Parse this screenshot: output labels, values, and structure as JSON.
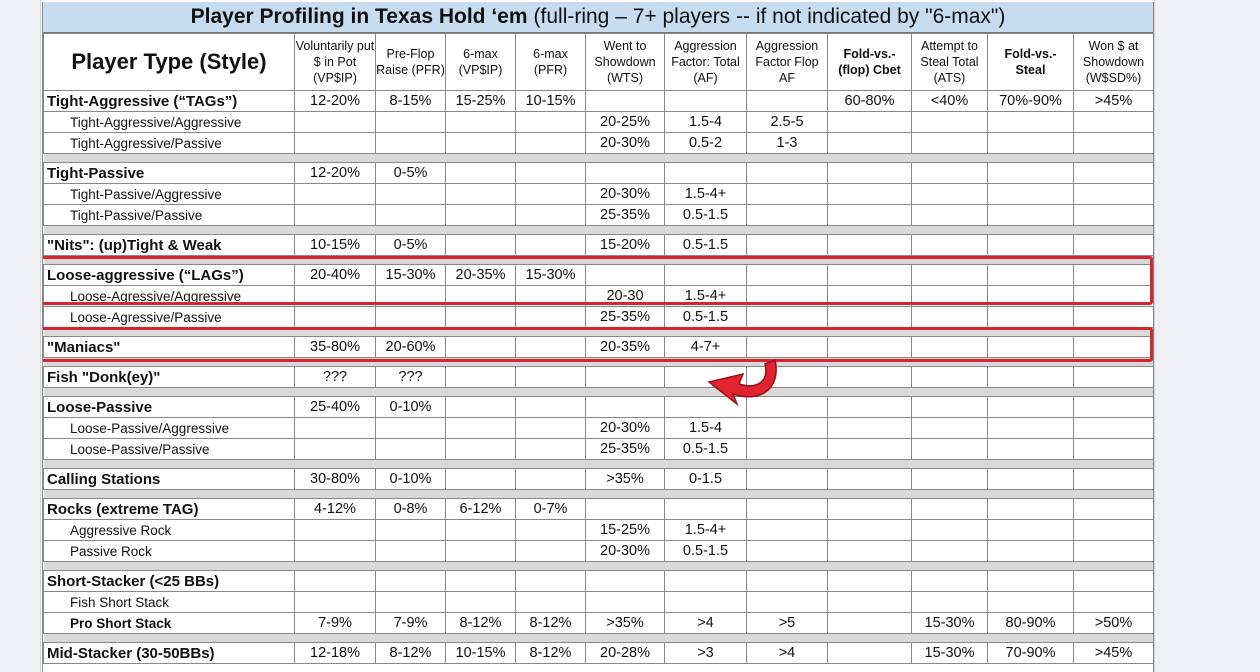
{
  "title": {
    "bold": "Player Profiling in Texas Hold ‘em",
    "rest": "(full-ring – 7+ players -- if not indicated by \"6-max\")"
  },
  "headers": [
    {
      "text": "Player Type (Style)",
      "bold": true,
      "big": true
    },
    {
      "text": "Voluntarily put $ in Pot (VP$IP)",
      "bold": false
    },
    {
      "text": "Pre-Flop Raise (PFR)",
      "bold": false
    },
    {
      "text": "6-max (VP$IP)",
      "bold": false
    },
    {
      "text": "6-max (PFR)",
      "bold": false
    },
    {
      "text": "Went to Showdown (WTS)",
      "bold": false
    },
    {
      "text": "Aggression Factor: Total (AF)",
      "bold": false
    },
    {
      "text": "Aggression Factor Flop AF",
      "bold": false
    },
    {
      "text": "Fold-vs.- (flop) Cbet",
      "bold": true
    },
    {
      "text": "Attempt to Steal Total (ATS)",
      "bold": false
    },
    {
      "text": "Fold-vs.- Steal",
      "bold": true
    },
    {
      "text": "Won $ at Showdown (W$SD%)",
      "bold": false
    }
  ],
  "rows": [
    {
      "type": "group",
      "cells": [
        "Tight-Aggressive (“TAGs”)",
        "12-20%",
        "8-15%",
        "15-25%",
        "10-15%",
        "",
        "",
        "",
        "60-80%",
        "<40%",
        "70%-90%",
        ">45%"
      ]
    },
    {
      "type": "sub",
      "cells": [
        "Tight-Aggressive/Aggressive",
        "",
        "",
        "",
        "",
        "20-25%",
        "1.5-4",
        "2.5-5",
        "",
        "",
        "",
        ""
      ]
    },
    {
      "type": "sub",
      "cells": [
        "Tight-Aggressive/Passive",
        "",
        "",
        "",
        "",
        "20-30%",
        "0.5-2",
        "1-3",
        "",
        "",
        "",
        ""
      ]
    },
    {
      "type": "spacer"
    },
    {
      "type": "group",
      "cells": [
        "Tight-Passive",
        "12-20%",
        "0-5%",
        "",
        "",
        "",
        "",
        "",
        "",
        "",
        "",
        ""
      ]
    },
    {
      "type": "sub",
      "cells": [
        "Tight-Passive/Aggressive",
        "",
        "",
        "",
        "",
        "20-30%",
        "1.5-4+",
        "",
        "",
        "",
        "",
        ""
      ]
    },
    {
      "type": "sub",
      "cells": [
        "Tight-Passive/Passive",
        "",
        "",
        "",
        "",
        "25-35%",
        "0.5-1.5",
        "",
        "",
        "",
        "",
        ""
      ]
    },
    {
      "type": "spacer"
    },
    {
      "type": "group",
      "cells": [
        "\"Nits\": (up)Tight & Weak",
        "10-15%",
        "0-5%",
        "",
        "",
        "15-20%",
        "0.5-1.5",
        "",
        "",
        "",
        "",
        ""
      ]
    },
    {
      "type": "spacer"
    },
    {
      "type": "group",
      "cells": [
        "Loose-aggressive (“LAGs”)",
        "20-40%",
        "15-30%",
        "20-35%",
        "15-30%",
        "",
        "",
        "",
        "",
        "",
        "",
        ""
      ]
    },
    {
      "type": "sub",
      "cells": [
        "Loose-Agressive/Aggressive",
        "",
        "",
        "",
        "",
        "20-30",
        "1.5-4+",
        "",
        "",
        "",
        "",
        ""
      ]
    },
    {
      "type": "sub",
      "cells": [
        "Loose-Agressive/Passive",
        "",
        "",
        "",
        "",
        "25-35%",
        "0.5-1.5",
        "",
        "",
        "",
        "",
        ""
      ]
    },
    {
      "type": "spacer"
    },
    {
      "type": "group",
      "cells": [
        "\"Maniacs\"",
        "35-80%",
        "20-60%",
        "",
        "",
        "20-35%",
        "4-7+",
        "",
        "",
        "",
        "",
        ""
      ]
    },
    {
      "type": "spacer"
    },
    {
      "type": "group",
      "cells": [
        "Fish \"Donk(ey)\"",
        "???",
        "???",
        "",
        "",
        "",
        "",
        "",
        "",
        "",
        "",
        ""
      ]
    },
    {
      "type": "spacer"
    },
    {
      "type": "group",
      "cells": [
        "Loose-Passive",
        "25-40%",
        "0-10%",
        "",
        "",
        "",
        "",
        "",
        "",
        "",
        "",
        ""
      ]
    },
    {
      "type": "sub",
      "cells": [
        "Loose-Passive/Aggressive",
        "",
        "",
        "",
        "",
        "20-30%",
        "1.5-4",
        "",
        "",
        "",
        "",
        ""
      ]
    },
    {
      "type": "sub",
      "cells": [
        "Loose-Passive/Passive",
        "",
        "",
        "",
        "",
        "25-35%",
        "0.5-1.5",
        "",
        "",
        "",
        "",
        ""
      ]
    },
    {
      "type": "spacer"
    },
    {
      "type": "group",
      "cells": [
        "Calling Stations",
        "30-80%",
        "0-10%",
        "",
        "",
        ">35%",
        "0-1.5",
        "",
        "",
        "",
        "",
        ""
      ]
    },
    {
      "type": "spacer"
    },
    {
      "type": "group",
      "cells": [
        "Rocks (extreme TAG)",
        "4-12%",
        "0-8%",
        "6-12%",
        "0-7%",
        "",
        "",
        "",
        "",
        "",
        "",
        ""
      ]
    },
    {
      "type": "sub",
      "cells": [
        "Aggressive Rock",
        "",
        "",
        "",
        "",
        "15-25%",
        "1.5-4+",
        "",
        "",
        "",
        "",
        ""
      ]
    },
    {
      "type": "sub",
      "cells": [
        "Passive Rock",
        "",
        "",
        "",
        "",
        "20-30%",
        "0.5-1.5",
        "",
        "",
        "",
        "",
        ""
      ]
    },
    {
      "type": "spacer"
    },
    {
      "type": "group",
      "cells": [
        "Short-Stacker (<25 BBs)",
        "",
        "",
        "",
        "",
        "",
        "",
        "",
        "",
        "",
        "",
        ""
      ]
    },
    {
      "type": "sub",
      "cells": [
        "Fish Short Stack",
        "",
        "",
        "",
        "",
        "",
        "",
        "",
        "",
        "",
        "",
        ""
      ]
    },
    {
      "type": "sub bold",
      "cells": [
        "Pro Short Stack",
        "7-9%",
        "7-9%",
        "8-12%",
        "8-12%",
        ">35%",
        ">4",
        ">5",
        "",
        "15-30%",
        "80-90%",
        ">50%"
      ]
    },
    {
      "type": "spacer"
    },
    {
      "type": "group",
      "cells": [
        "Mid-Stacker (30-50BBs)",
        "12-18%",
        "8-12%",
        "10-15%",
        "8-12%",
        "20-28%",
        ">3",
        ">4",
        "",
        "15-30%",
        "70-90%",
        ">45%"
      ]
    }
  ],
  "colors": {
    "title_bg": "#c8dcf0",
    "highlight": "#d9232e",
    "spacer": "#d9d9d9"
  },
  "annotations": [
    "highlight-box-lags",
    "highlight-box-maniacs",
    "curved-arrow-icon"
  ]
}
